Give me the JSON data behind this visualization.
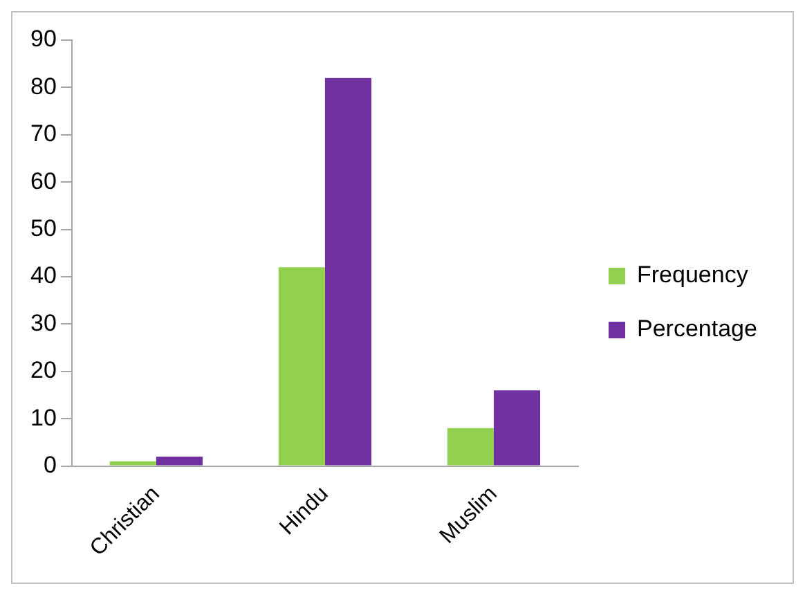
{
  "chart_data": {
    "type": "bar",
    "categories": [
      "Christian",
      "Hindu",
      "Muslim"
    ],
    "series": [
      {
        "name": "Frequency",
        "color": "#92d050",
        "values": [
          1,
          42,
          8
        ]
      },
      {
        "name": "Percentage",
        "color": "#7030a0",
        "values": [
          2,
          82,
          16
        ]
      }
    ],
    "ylim": [
      0,
      90
    ],
    "yticks": [
      0,
      10,
      20,
      30,
      40,
      50,
      60,
      70,
      80,
      90
    ],
    "grid": false,
    "legend": "right"
  }
}
